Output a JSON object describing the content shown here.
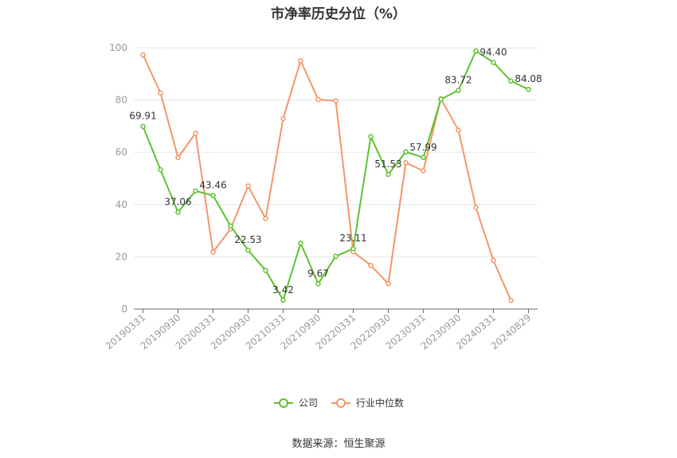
{
  "chart_data": {
    "type": "line",
    "title": "市净率历史分位（%）",
    "xlabel": "",
    "ylabel": "",
    "ylim": [
      0,
      100
    ],
    "y_ticks": [
      0,
      20,
      40,
      60,
      80,
      100
    ],
    "x_tick_labels": [
      "20190331",
      "20190930",
      "20200331",
      "20200930",
      "20210331",
      "20210930",
      "20220331",
      "20220930",
      "20230331",
      "20230930",
      "20240331",
      "20240829"
    ],
    "x": [
      "20190331",
      "20190630",
      "20190930",
      "20191231",
      "20200331",
      "20200630",
      "20200930",
      "20201231",
      "20210331",
      "20210630",
      "20210930",
      "20211231",
      "20220331",
      "20220630",
      "20220930",
      "20221231",
      "20230331",
      "20230630",
      "20230930",
      "20231231",
      "20240331",
      "20240630",
      "20240829"
    ],
    "grid": "horizontal",
    "legend_position": "bottom-center",
    "series": [
      {
        "name": "公司",
        "color": "#5ec22e",
        "values": [
          69.91,
          53.3,
          37.06,
          45.2,
          43.46,
          31.8,
          22.53,
          14.8,
          3.42,
          25.2,
          9.67,
          20.2,
          23.11,
          66.0,
          51.53,
          60.2,
          57.99,
          80.3,
          83.72,
          98.8,
          94.4,
          87.3,
          84.08
        ],
        "labels": {
          "0": "69.91",
          "2": "37.06",
          "4": "43.46",
          "6": "22.53",
          "8": "3.42",
          "10": "9.67",
          "12": "23.11",
          "14": "51.53",
          "16": "57.99",
          "18": "83.72",
          "20": "94.40",
          "22": "84.08"
        }
      },
      {
        "name": "行业中位数",
        "color": "#f4956a",
        "values": [
          97.3,
          82.7,
          58.0,
          67.3,
          21.8,
          30.7,
          47.1,
          34.6,
          72.9,
          95.1,
          80.2,
          79.7,
          21.9,
          16.7,
          9.7,
          56.0,
          52.9,
          80.5,
          68.5,
          38.9,
          18.6,
          3.3,
          null
        ]
      }
    ]
  },
  "source_text": "数据来源：恒生聚源"
}
